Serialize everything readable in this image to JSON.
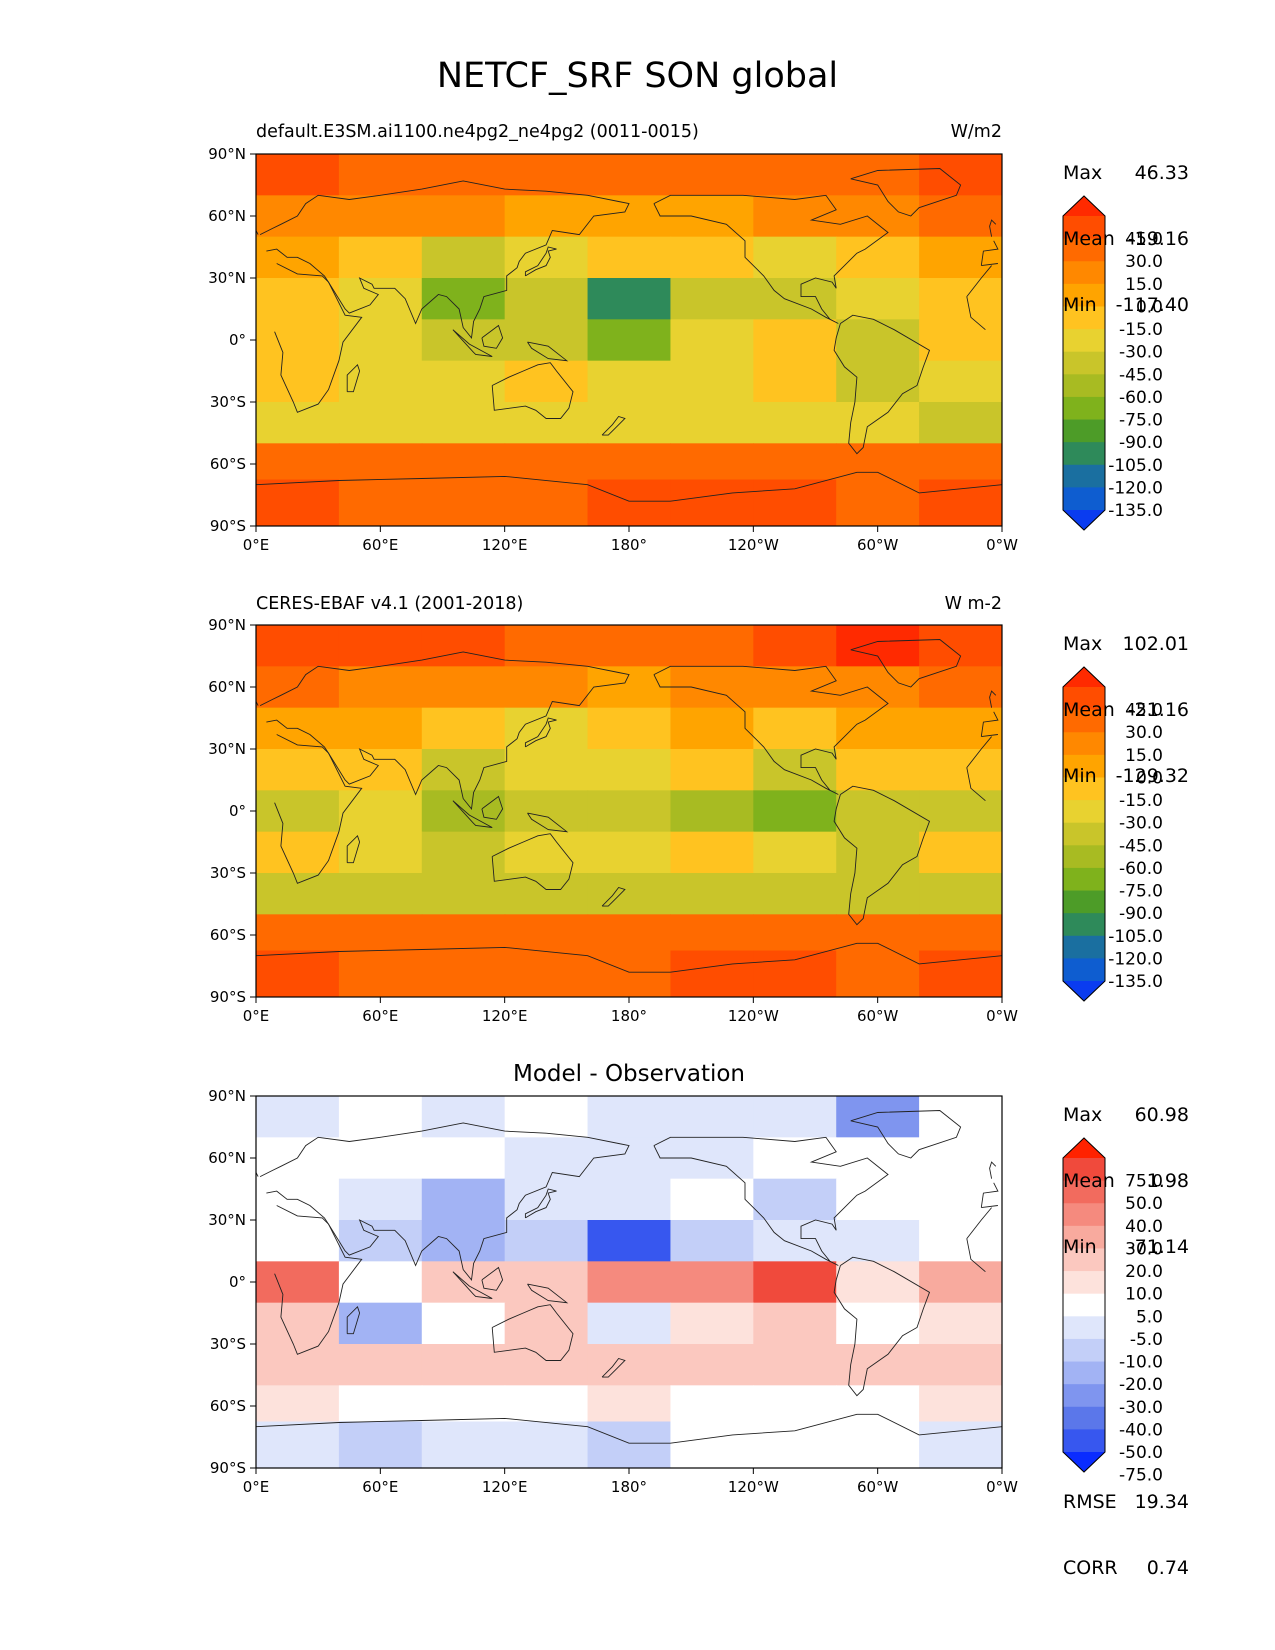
{
  "title": "NETCF_SRF SON global",
  "panels": [
    {
      "left_title": "default.E3SM.ai1100.ne4pg2_ne4pg2 (0011-0015)",
      "center_title": "",
      "units": "W/m2",
      "stats": [
        {
          "label": "Max",
          "value": "46.33"
        },
        {
          "label": "Mean",
          "value": "-19.16"
        },
        {
          "label": "Min",
          "value": "-117.40"
        }
      ],
      "colorbar_labels": [
        "45.0",
        "30.0",
        "15.0",
        "0.0",
        "-15.0",
        "-30.0",
        "-45.0",
        "-60.0",
        "-75.0",
        "-90.0",
        "-105.0",
        "-120.0",
        "-135.0"
      ],
      "colorbar_colors": [
        "#ff2a00",
        "#ff4d00",
        "#ff6a00",
        "#ff8800",
        "#ffa400",
        "#ffc320",
        "#e8d230",
        "#c9c52a",
        "#a8bb22",
        "#7fb21c",
        "#4d9c28",
        "#2e8a5a",
        "#1a6fa0",
        "#0e5dd0",
        "#0a3cf0"
      ]
    },
    {
      "left_title": "CERES-EBAF v4.1 (2001-2018)",
      "center_title": "",
      "units": "W m-2",
      "stats": [
        {
          "label": "Max",
          "value": "102.01"
        },
        {
          "label": "Mean",
          "value": "-21.16"
        },
        {
          "label": "Min",
          "value": "-129.32"
        }
      ],
      "colorbar_labels": [
        "45.0",
        "30.0",
        "15.0",
        "0.0",
        "-15.0",
        "-30.0",
        "-45.0",
        "-60.0",
        "-75.0",
        "-90.0",
        "-105.0",
        "-120.0",
        "-135.0"
      ],
      "colorbar_colors": [
        "#ff2a00",
        "#ff4d00",
        "#ff6a00",
        "#ff8800",
        "#ffa400",
        "#ffc320",
        "#e8d230",
        "#c9c52a",
        "#a8bb22",
        "#7fb21c",
        "#4d9c28",
        "#2e8a5a",
        "#1a6fa0",
        "#0e5dd0",
        "#0a3cf0"
      ]
    },
    {
      "left_title": "",
      "center_title": "Model - Observation",
      "units": "",
      "stats": [
        {
          "label": "Max",
          "value": "60.98"
        },
        {
          "label": "Mean",
          "value": "1.98"
        },
        {
          "label": "Min",
          "value": "-71.14"
        }
      ],
      "extra_stats": [
        {
          "label": "RMSE",
          "value": "19.34"
        },
        {
          "label": "CORR",
          "value": "0.74"
        }
      ],
      "colorbar_labels": [
        "75.0",
        "50.0",
        "40.0",
        "30.0",
        "20.0",
        "10.0",
        "5.0",
        "-5.0",
        "-10.0",
        "-20.0",
        "-30.0",
        "-40.0",
        "-50.0",
        "-75.0"
      ],
      "colorbar_colors": [
        "#ff2200",
        "#f04a3c",
        "#f26b5e",
        "#f58a7e",
        "#f8aa9e",
        "#fbc8bf",
        "#fde2dc",
        "#ffffff",
        "#dfe6fb",
        "#c3cff8",
        "#a2b3f4",
        "#7f95ef",
        "#5b77ea",
        "#3757ef",
        "#0a2cff"
      ]
    }
  ],
  "chart_data": [
    {
      "type": "heatmap",
      "title": "default.E3SM.ai1100.ne4pg2_ne4pg2 (0011-0015)",
      "units": "W/m2",
      "x_tick_labels": [
        "0°E",
        "60°E",
        "120°E",
        "180°",
        "120°W",
        "60°W",
        "0°W"
      ],
      "y_tick_labels": [
        "90°N",
        "60°N",
        "30°N",
        "0°",
        "30°S",
        "60°S",
        "90°S"
      ],
      "xlim": [
        0,
        360
      ],
      "ylim": [
        -90,
        90
      ],
      "lat": [
        80,
        60,
        40,
        20,
        0,
        -20,
        -40,
        -60,
        -75
      ],
      "lon": [
        20,
        60,
        100,
        140,
        180,
        220,
        260,
        300,
        340
      ],
      "values": [
        [
          30,
          25,
          25,
          20,
          15,
          15,
          20,
          25,
          35
        ],
        [
          10,
          5,
          0,
          -10,
          -15,
          -10,
          0,
          10,
          15
        ],
        [
          -10,
          -20,
          -55,
          -45,
          -30,
          -20,
          -45,
          -20,
          -5
        ],
        [
          -25,
          -45,
          -85,
          -60,
          -110,
          -50,
          -60,
          -40,
          -20
        ],
        [
          -20,
          -45,
          -60,
          -50,
          -80,
          -40,
          -30,
          -55,
          -25
        ],
        [
          -30,
          -40,
          -35,
          -30,
          -45,
          -35,
          -30,
          -50,
          -35
        ],
        [
          -45,
          -45,
          -40,
          -40,
          -40,
          -35,
          -40,
          -45,
          -50
        ],
        [
          25,
          15,
          20,
          25,
          25,
          20,
          25,
          20,
          25
        ],
        [
          30,
          20,
          20,
          15,
          30,
          35,
          30,
          25,
          30
        ]
      ]
    },
    {
      "type": "heatmap",
      "title": "CERES-EBAF v4.1 (2001-2018)",
      "units": "W m-2",
      "x_tick_labels": [
        "0°E",
        "60°E",
        "120°E",
        "180°",
        "120°W",
        "60°W",
        "0°W"
      ],
      "y_tick_labels": [
        "90°N",
        "60°N",
        "30°N",
        "0°",
        "30°S",
        "60°S",
        "90°S"
      ],
      "xlim": [
        0,
        360
      ],
      "ylim": [
        -90,
        90
      ],
      "lat": [
        80,
        60,
        40,
        20,
        0,
        -20,
        -40,
        -60,
        -75
      ],
      "lon": [
        20,
        60,
        100,
        140,
        180,
        220,
        260,
        300,
        340
      ],
      "values": [
        [
          40,
          30,
          30,
          25,
          25,
          25,
          30,
          60,
          40
        ],
        [
          15,
          10,
          5,
          0,
          -5,
          0,
          5,
          10,
          15
        ],
        [
          -5,
          -10,
          -30,
          -35,
          -20,
          -15,
          -30,
          -15,
          -10
        ],
        [
          -20,
          -30,
          -60,
          -45,
          -35,
          -30,
          -50,
          -30,
          -20
        ],
        [
          -55,
          -45,
          -75,
          -60,
          -50,
          -70,
          -90,
          -60,
          -50
        ],
        [
          -20,
          -45,
          -50,
          -40,
          -35,
          -30,
          -40,
          -55,
          -30
        ],
        [
          -60,
          -60,
          -55,
          -55,
          -50,
          -50,
          -55,
          -60,
          -60
        ],
        [
          20,
          20,
          25,
          25,
          20,
          20,
          25,
          20,
          20
        ],
        [
          30,
          25,
          25,
          20,
          25,
          30,
          30,
          25,
          30
        ]
      ]
    },
    {
      "type": "heatmap",
      "title": "Model - Observation",
      "x_tick_labels": [
        "0°E",
        "60°E",
        "120°E",
        "180°",
        "120°W",
        "60°W",
        "0°W"
      ],
      "y_tick_labels": [
        "90°N",
        "60°N",
        "30°N",
        "0°",
        "30°S",
        "60°S",
        "90°S"
      ],
      "xlim": [
        0,
        360
      ],
      "ylim": [
        -90,
        90
      ],
      "lat": [
        80,
        60,
        40,
        20,
        0,
        -20,
        -40,
        -60,
        -75
      ],
      "lon": [
        20,
        60,
        100,
        140,
        180,
        220,
        260,
        300,
        340
      ],
      "values": [
        [
          -10,
          -5,
          -10,
          -5,
          -10,
          -10,
          -10,
          -40,
          -5
        ],
        [
          -5,
          -5,
          -5,
          -10,
          -10,
          -10,
          -5,
          0,
          0
        ],
        [
          -5,
          -10,
          -25,
          -10,
          -10,
          -5,
          -15,
          -5,
          0
        ],
        [
          -5,
          -15,
          -25,
          -15,
          -70,
          -20,
          -10,
          -10,
          0
        ],
        [
          40,
          0,
          15,
          10,
          30,
          30,
          60,
          5,
          25
        ],
        [
          10,
          -25,
          -5,
          10,
          -10,
          5,
          10,
          -5,
          5
        ],
        [
          15,
          15,
          15,
          15,
          10,
          15,
          15,
          15,
          10
        ],
        [
          5,
          -5,
          -5,
          0,
          5,
          0,
          0,
          0,
          5
        ],
        [
          -10,
          -15,
          -10,
          -10,
          -20,
          -5,
          -5,
          -5,
          -10
        ]
      ]
    }
  ]
}
